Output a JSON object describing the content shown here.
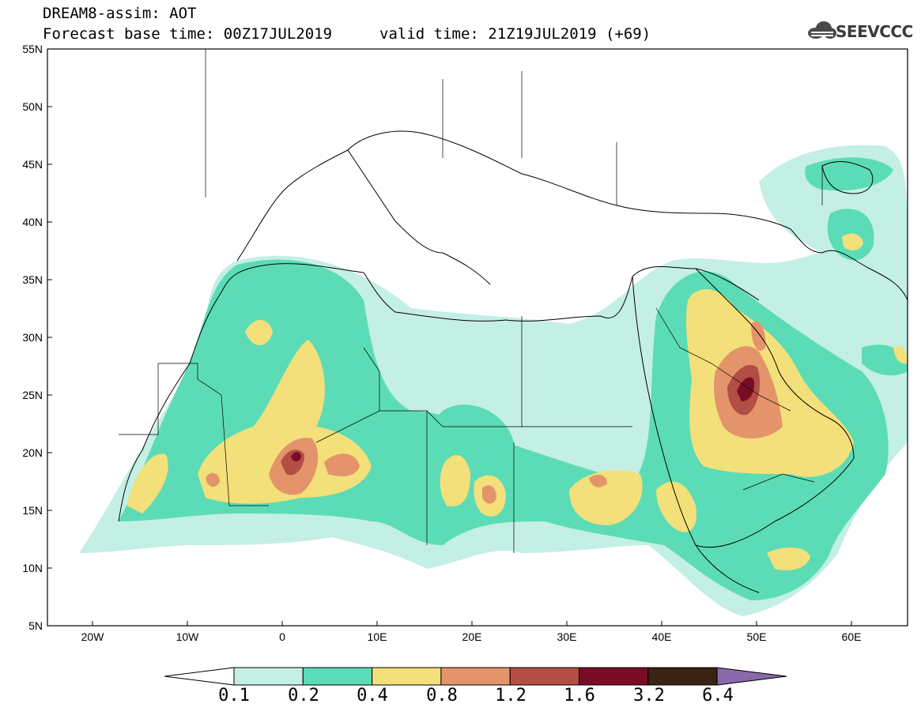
{
  "header": {
    "title_line1": "DREAM8-assim: AOT",
    "title_line2": "Forecast base time: 00Z17JUL2019",
    "valid_time": "valid time: 21Z19JUL2019 (+69)",
    "logo_text": "SEEVCCC"
  },
  "map": {
    "lat_labels": [
      "55N",
      "50N",
      "45N",
      "40N",
      "35N",
      "30N",
      "25N",
      "20N",
      "15N",
      "10N",
      "5N"
    ],
    "lon_labels": [
      "20W",
      "10W",
      "0",
      "10E",
      "20E",
      "30E",
      "40E",
      "50E",
      "60E"
    ],
    "background_color": "#ffffff",
    "coastline_color": "#000000"
  },
  "colorbar": {
    "labels": [
      "0.1",
      "0.2",
      "0.4",
      "0.8",
      "1.2",
      "1.6",
      "3.2",
      "6.4"
    ],
    "colors": [
      "#ffffff",
      "#c4efe4",
      "#5cdcb6",
      "#f3e07a",
      "#e4946a",
      "#b24e44",
      "#7a0c28",
      "#3a2214",
      "#8a6aaa"
    ]
  }
}
